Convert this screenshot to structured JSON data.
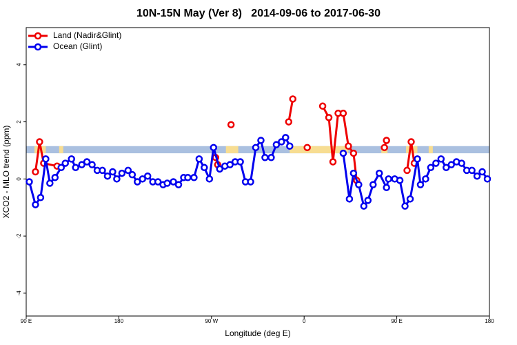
{
  "chart_data": {
    "type": "line",
    "title": "10N-15N May (Ver 8)   2014-09-06 to 2017-06-30",
    "x_label": "Longitude (deg E)",
    "y_label": "XCO2 - MLO trend (ppm)",
    "xlim": [
      90,
      540
    ],
    "ylim": [
      -4.8,
      5.3
    ],
    "xticks": [
      {
        "value": 90,
        "label": "90 E"
      },
      {
        "value": 180,
        "label": "180"
      },
      {
        "value": 270,
        "label": "90 W"
      },
      {
        "value": 360,
        "label": "0"
      },
      {
        "value": 450,
        "label": "90 E"
      },
      {
        "value": 540,
        "label": "180"
      }
    ],
    "yticks": [
      -4,
      -2,
      0,
      2,
      4
    ],
    "legend": "top-left",
    "band": {
      "ylim": [
        0.9,
        1.15
      ],
      "color": "#aac0e0"
    },
    "band_highlights": {
      "color": "#ffe08a",
      "ranges": [
        [
          98,
          109
        ],
        [
          122,
          126
        ],
        [
          284,
          296
        ],
        [
          346,
          403
        ],
        [
          435,
          441
        ],
        [
          459,
          470
        ],
        [
          481,
          485
        ]
      ]
    },
    "series": [
      {
        "name": "Land (Nadir&Glint)",
        "color": "#ee0000",
        "x": [
          99,
          103,
          107,
          120,
          null,
          274,
          276,
          null,
          289,
          null,
          345,
          349,
          null,
          363,
          null,
          378,
          384,
          388,
          393,
          398,
          403,
          408,
          411,
          null,
          438,
          440,
          null,
          460,
          464,
          467
        ],
        "values": [
          0.25,
          1.3,
          0.55,
          0.45,
          null,
          0.75,
          0.5,
          null,
          1.9,
          null,
          2.0,
          2.8,
          null,
          1.1,
          null,
          2.55,
          2.15,
          0.6,
          2.3,
          2.3,
          1.15,
          0.9,
          -0.05,
          null,
          1.1,
          1.35,
          null,
          0.3,
          1.3,
          0.55
        ]
      },
      {
        "name": "Ocean (Glint)",
        "color": "#0000ee",
        "x": [
          93,
          99,
          104,
          109,
          113,
          118,
          124,
          128,
          134,
          138,
          144,
          149,
          154,
          159,
          164,
          169,
          174,
          178,
          183,
          189,
          193,
          198,
          203,
          208,
          213,
          218,
          223,
          227,
          233,
          238,
          243,
          247,
          253,
          258,
          263,
          268,
          272,
          278,
          283,
          288,
          293,
          298,
          303,
          308,
          313,
          318,
          322,
          328,
          333,
          338,
          342,
          346,
          null,
          398,
          404,
          408,
          413,
          418,
          422,
          427,
          433,
          440,
          442,
          448,
          453,
          458,
          463,
          470,
          473,
          478,
          483,
          488,
          493,
          498,
          503,
          508,
          513,
          518,
          523,
          528,
          533,
          538
        ],
        "values": [
          -0.1,
          -0.9,
          -0.65,
          0.7,
          -0.15,
          0.05,
          0.4,
          0.55,
          0.7,
          0.4,
          0.5,
          0.6,
          0.5,
          0.3,
          0.3,
          0.1,
          0.25,
          0.0,
          0.2,
          0.3,
          0.15,
          -0.1,
          0.0,
          0.1,
          -0.1,
          -0.1,
          -0.2,
          -0.15,
          -0.1,
          -0.2,
          0.05,
          0.05,
          0.05,
          0.7,
          0.4,
          0.0,
          1.1,
          0.35,
          0.45,
          0.5,
          0.6,
          0.6,
          -0.1,
          -0.1,
          1.1,
          1.35,
          0.75,
          0.75,
          1.2,
          1.3,
          1.45,
          1.15,
          null,
          0.9,
          -0.7,
          0.2,
          -0.2,
          -0.95,
          -0.75,
          -0.2,
          0.2,
          -0.3,
          0.0,
          0.0,
          -0.05,
          -0.95,
          -0.7,
          0.7,
          -0.2,
          0.0,
          0.4,
          0.55,
          0.7,
          0.4,
          0.5,
          0.6,
          0.55,
          0.3,
          0.3,
          0.1,
          0.25,
          0.0
        ]
      }
    ]
  }
}
